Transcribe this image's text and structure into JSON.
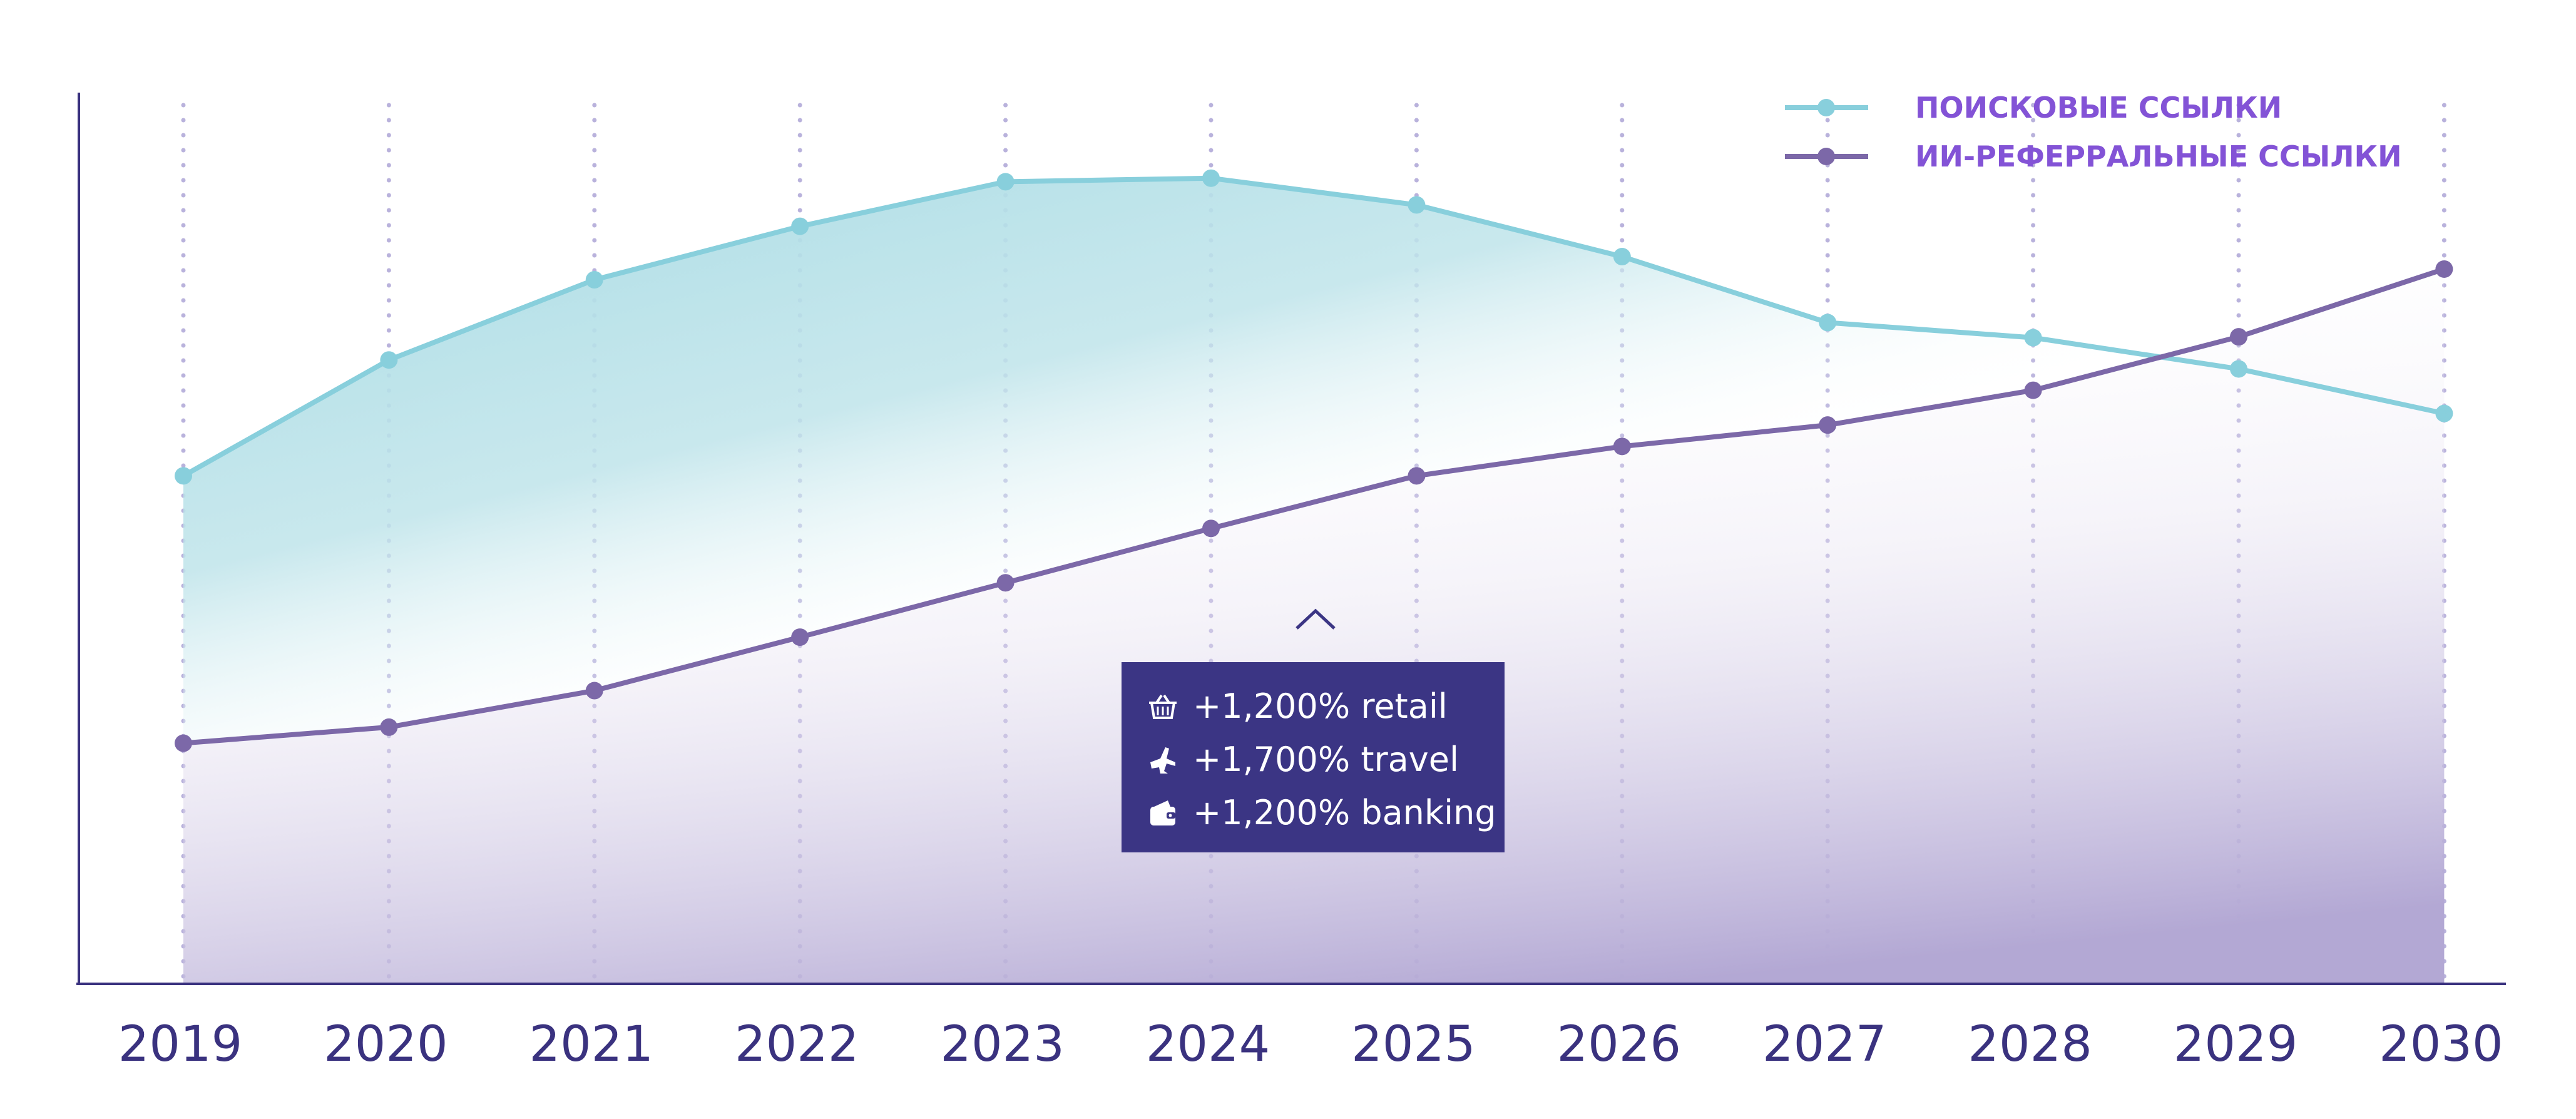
{
  "chart_data": {
    "type": "line",
    "x": [
      "2019",
      "2020",
      "2021",
      "2022",
      "2023",
      "2024",
      "2025",
      "2026",
      "2027",
      "2028",
      "2029",
      "2030"
    ],
    "series": [
      {
        "name": "ПОИСКОВЫЕ ССЫЛКИ",
        "color": "#88cfdc",
        "values": [
          57,
          70,
          79,
          85,
          90,
          90.4,
          87.4,
          81.6,
          74.2,
          72.5,
          69,
          64
        ]
      },
      {
        "name": "ИИ-РЕФЕРРАЛЬНЫЕ ССЫЛКИ",
        "color": "#7c68a8",
        "values": [
          27,
          28.8,
          32.9,
          38.9,
          45,
          51.1,
          57,
          60.3,
          62.7,
          66.6,
          72.6,
          80.2
        ]
      }
    ],
    "ylim": [
      0,
      100
    ],
    "grid": "vertical dotted",
    "legend_position": "top-right",
    "area_fill": {
      "upper_color": "#9fd6e0",
      "lower_color": "#b3a8d4"
    },
    "annotation": {
      "items": [
        {
          "icon": "basket-icon",
          "text": "+1,200% retail"
        },
        {
          "icon": "airplane-icon",
          "text": "+1,700% travel"
        },
        {
          "icon": "wallet-icon",
          "text": "+1,200% banking"
        }
      ],
      "background": "#3b3584"
    },
    "axis_color": "#3a327f"
  }
}
